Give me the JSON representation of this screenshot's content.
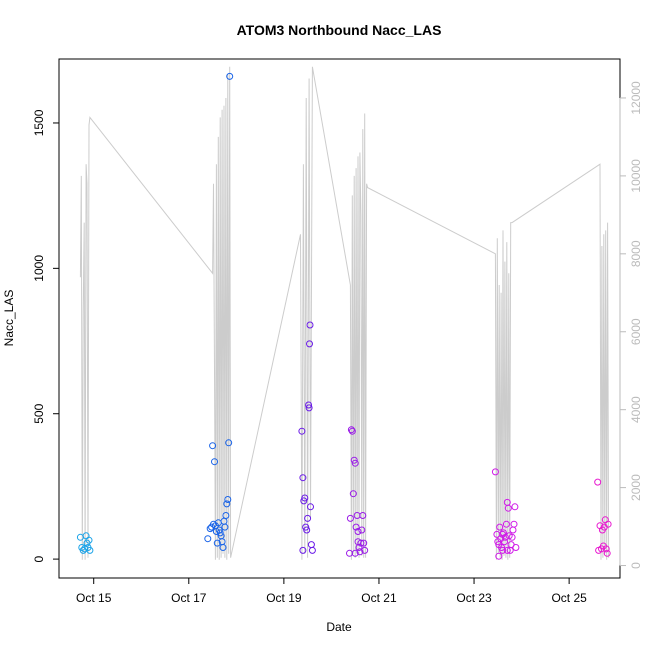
{
  "chart_data": {
    "type": "scatter",
    "title": "ATOM3 Northbound Nacc_LAS",
    "xlabel": "Date",
    "ylabel": "Nacc_LAS",
    "x_unit": "day of October",
    "xlim": [
      14.27,
      26.07
    ],
    "ylim": [
      -65,
      1720
    ],
    "y2lim": [
      -320,
      13000
    ],
    "x_ticks": [
      15,
      17,
      19,
      21,
      23,
      25
    ],
    "x_tick_labels": [
      "Oct 15",
      "Oct 17",
      "Oct 19",
      "Oct 21",
      "Oct 23",
      "Oct 25"
    ],
    "y_ticks": [
      0,
      500,
      1000,
      1500
    ],
    "y_tick_labels": [
      "0",
      "500",
      "1000",
      "1500"
    ],
    "y2_ticks": [
      0,
      2000,
      4000,
      6000,
      8000,
      10000,
      12000
    ],
    "y2_tick_labels": [
      "0",
      "2000",
      "4000",
      "6000",
      "8000",
      "10000",
      "12000"
    ],
    "grid": false,
    "line_series_color": "#cccccc",
    "point_colors": [
      "#1aa3e8",
      "#1a64e8",
      "#6a1ae8",
      "#9a1ae8",
      "#d01ae8",
      "#e81ad0"
    ],
    "points_by_day": [
      [
        [
          14.72,
          75
        ],
        [
          14.75,
          40
        ],
        [
          14.78,
          30
        ],
        [
          14.81,
          35
        ],
        [
          14.84,
          80
        ],
        [
          14.86,
          55
        ],
        [
          14.88,
          40
        ],
        [
          14.9,
          65
        ],
        [
          14.92,
          30
        ]
      ],
      [
        [
          17.4,
          70
        ],
        [
          17.45,
          105
        ],
        [
          17.48,
          110
        ],
        [
          17.5,
          390
        ],
        [
          17.52,
          120
        ],
        [
          17.54,
          335
        ],
        [
          17.56,
          115
        ],
        [
          17.58,
          95
        ],
        [
          17.6,
          55
        ],
        [
          17.62,
          125
        ],
        [
          17.64,
          100
        ],
        [
          17.66,
          90
        ],
        [
          17.68,
          80
        ],
        [
          17.7,
          60
        ],
        [
          17.72,
          40
        ],
        [
          17.74,
          130
        ],
        [
          17.76,
          110
        ],
        [
          17.78,
          150
        ],
        [
          17.8,
          190
        ],
        [
          17.82,
          205
        ],
        [
          17.84,
          400
        ],
        [
          17.86,
          1660
        ]
      ],
      [
        [
          19.38,
          440
        ],
        [
          19.4,
          280
        ],
        [
          19.42,
          200
        ],
        [
          19.44,
          210
        ],
        [
          19.46,
          110
        ],
        [
          19.48,
          100
        ],
        [
          19.5,
          140
        ],
        [
          19.52,
          530
        ],
        [
          19.53,
          520
        ],
        [
          19.54,
          740
        ],
        [
          19.55,
          805
        ],
        [
          19.56,
          180
        ],
        [
          19.58,
          50
        ],
        [
          19.6,
          30
        ],
        [
          19.4,
          30
        ]
      ],
      [
        [
          20.38,
          20
        ],
        [
          20.4,
          140
        ],
        [
          20.42,
          445
        ],
        [
          20.44,
          440
        ],
        [
          20.46,
          225
        ],
        [
          20.48,
          340
        ],
        [
          20.5,
          330
        ],
        [
          20.52,
          110
        ],
        [
          20.54,
          150
        ],
        [
          20.56,
          60
        ],
        [
          20.58,
          40
        ],
        [
          20.6,
          25
        ],
        [
          20.62,
          55
        ],
        [
          20.64,
          100
        ],
        [
          20.66,
          150
        ],
        [
          20.68,
          55
        ],
        [
          20.7,
          30
        ],
        [
          20.5,
          20
        ],
        [
          20.56,
          95
        ]
      ],
      [
        [
          23.45,
          300
        ],
        [
          23.48,
          85
        ],
        [
          23.5,
          60
        ],
        [
          23.52,
          50
        ],
        [
          23.54,
          110
        ],
        [
          23.56,
          70
        ],
        [
          23.58,
          40
        ],
        [
          23.6,
          30
        ],
        [
          23.62,
          90
        ],
        [
          23.64,
          60
        ],
        [
          23.66,
          75
        ],
        [
          23.68,
          120
        ],
        [
          23.7,
          195
        ],
        [
          23.72,
          175
        ],
        [
          23.74,
          80
        ],
        [
          23.76,
          30
        ],
        [
          23.78,
          50
        ],
        [
          23.8,
          75
        ],
        [
          23.82,
          100
        ],
        [
          23.84,
          120
        ],
        [
          23.86,
          180
        ],
        [
          23.88,
          40
        ],
        [
          23.52,
          10
        ],
        [
          23.6,
          85
        ],
        [
          23.7,
          30
        ]
      ],
      [
        [
          25.6,
          265
        ],
        [
          25.62,
          30
        ],
        [
          25.65,
          115
        ],
        [
          25.68,
          35
        ],
        [
          25.7,
          100
        ],
        [
          25.72,
          45
        ],
        [
          25.74,
          110
        ],
        [
          25.76,
          135
        ],
        [
          25.78,
          35
        ],
        [
          25.8,
          20
        ],
        [
          25.82,
          120
        ]
      ]
    ],
    "line_x": [
      14.72,
      14.74,
      14.76,
      14.78,
      14.8,
      14.82,
      14.84,
      14.86,
      14.88,
      14.9,
      14.92,
      17.5,
      17.52,
      17.54,
      17.56,
      17.58,
      17.6,
      17.62,
      17.64,
      17.66,
      17.68,
      17.7,
      17.72,
      17.74,
      17.76,
      17.78,
      17.8,
      17.82,
      17.84,
      17.86,
      17.88,
      19.35,
      19.38,
      19.41,
      19.44,
      19.47,
      19.5,
      19.53,
      19.56,
      19.6,
      20.4,
      20.42,
      20.44,
      20.46,
      20.48,
      20.5,
      20.52,
      20.54,
      20.56,
      20.58,
      20.6,
      20.62,
      20.64,
      20.66,
      20.68,
      20.7,
      20.72,
      20.74,
      20.76,
      23.45,
      23.47,
      23.49,
      23.51,
      23.53,
      23.55,
      23.57,
      23.59,
      23.61,
      23.63,
      23.65,
      23.67,
      23.69,
      23.71,
      23.73,
      23.75,
      23.77,
      23.8,
      25.65,
      25.67,
      25.69,
      25.71,
      25.73,
      25.75,
      25.77,
      25.79,
      25.81,
      25.83
    ],
    "line_y2": [
      7400,
      10000,
      150,
      6500,
      8800,
      150,
      10300,
      9800,
      200,
      11300,
      11500,
      7500,
      9800,
      5000,
      150,
      10300,
      200,
      11000,
      150,
      11500,
      200,
      11700,
      300,
      11800,
      200,
      12000,
      150,
      12600,
      300,
      12800,
      200,
      8500,
      150,
      10300,
      300,
      12000,
      200,
      12500,
      1200,
      12800,
      7200,
      150,
      9500,
      300,
      10000,
      200,
      10200,
      300,
      10500,
      200,
      10600,
      9000,
      250,
      11200,
      200,
      11600,
      200,
      9800,
      9700,
      8000,
      150,
      8400,
      300,
      7200,
      200,
      7000,
      150,
      8600,
      250,
      7800,
      200,
      8300,
      150,
      7500,
      200,
      8800,
      8800,
      10300,
      150,
      8200,
      200,
      8500,
      300,
      8600,
      150,
      8800,
      200,
      5200
    ]
  }
}
